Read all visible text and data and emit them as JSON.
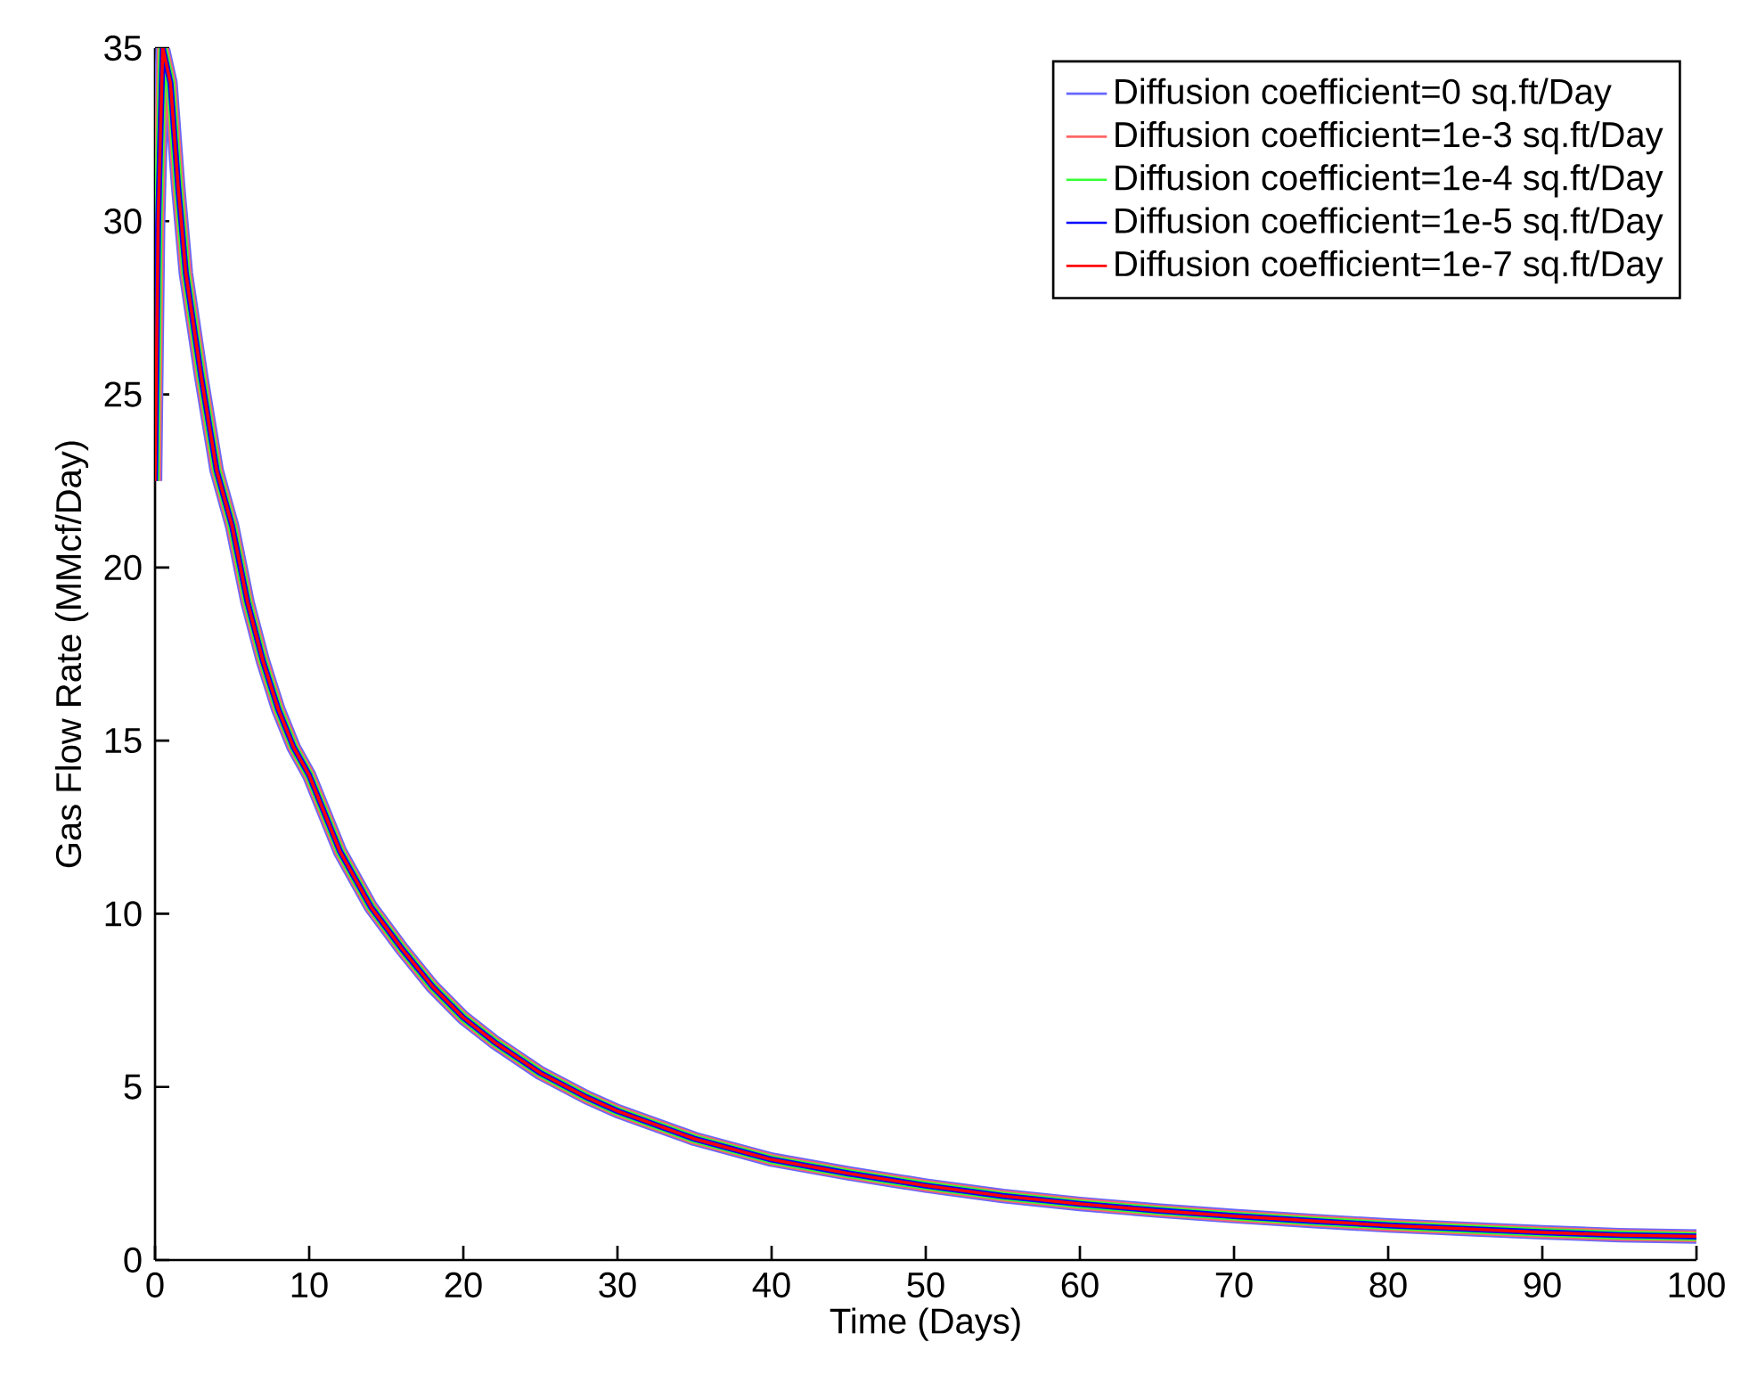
{
  "chart_data": {
    "type": "line",
    "xlabel": "Time (Days)",
    "ylabel": "Gas Flow Rate (MMcf/Day)",
    "x": [
      0,
      0.2,
      0.5,
      1,
      1.5,
      2,
      3,
      4,
      5,
      6,
      7,
      8,
      9,
      10,
      12,
      14,
      16,
      18,
      20,
      22,
      25,
      28,
      30,
      35,
      40,
      45,
      50,
      55,
      60,
      65,
      70,
      75,
      80,
      85,
      90,
      95,
      100
    ],
    "series": [
      {
        "name": "Diffusion coefficient=0 sq.ft/Day",
        "color": "#6666ff",
        "values": [
          22.5,
          30,
          35,
          34,
          31,
          28.5,
          25.5,
          22.8,
          21.2,
          19,
          17.3,
          15.9,
          14.8,
          14.0,
          11.8,
          10.2,
          9.0,
          7.9,
          7.0,
          6.3,
          5.4,
          4.7,
          4.3,
          3.5,
          2.9,
          2.5,
          2.15,
          1.85,
          1.62,
          1.43,
          1.27,
          1.13,
          1.0,
          0.9,
          0.8,
          0.72,
          0.68
        ]
      },
      {
        "name": "Diffusion coefficient=1e-3 sq.ft/Day",
        "color": "#ff6666",
        "values": [
          22.5,
          30,
          35,
          34,
          31,
          28.5,
          25.5,
          22.8,
          21.2,
          19,
          17.3,
          15.9,
          14.8,
          14.0,
          11.8,
          10.2,
          9.0,
          7.9,
          7.0,
          6.3,
          5.4,
          4.7,
          4.3,
          3.5,
          2.9,
          2.5,
          2.15,
          1.85,
          1.62,
          1.43,
          1.27,
          1.13,
          1.0,
          0.9,
          0.8,
          0.72,
          0.68
        ]
      },
      {
        "name": "Diffusion coefficient=1e-4 sq.ft/Day",
        "color": "#33ff33",
        "values": [
          22.5,
          30,
          35,
          34,
          31,
          28.5,
          25.5,
          22.8,
          21.2,
          19,
          17.3,
          15.9,
          14.8,
          14.0,
          11.8,
          10.2,
          9.0,
          7.9,
          7.0,
          6.3,
          5.4,
          4.7,
          4.3,
          3.5,
          2.9,
          2.5,
          2.15,
          1.85,
          1.62,
          1.43,
          1.27,
          1.13,
          1.0,
          0.9,
          0.8,
          0.72,
          0.68
        ]
      },
      {
        "name": "Diffusion coefficient=1e-5 sq.ft/Day",
        "color": "#0000ff",
        "values": [
          22.5,
          30,
          35,
          34,
          31,
          28.5,
          25.5,
          22.8,
          21.2,
          19,
          17.3,
          15.9,
          14.8,
          14.0,
          11.8,
          10.2,
          9.0,
          7.9,
          7.0,
          6.3,
          5.4,
          4.7,
          4.3,
          3.5,
          2.9,
          2.5,
          2.15,
          1.85,
          1.62,
          1.43,
          1.27,
          1.13,
          1.0,
          0.9,
          0.8,
          0.72,
          0.68
        ]
      },
      {
        "name": "Diffusion coefficient=1e-7 sq.ft/Day",
        "color": "#ff0000",
        "values": [
          22.5,
          30,
          35,
          34,
          31,
          28.5,
          25.5,
          22.8,
          21.2,
          19,
          17.3,
          15.9,
          14.8,
          14.0,
          11.8,
          10.2,
          9.0,
          7.9,
          7.0,
          6.3,
          5.4,
          4.7,
          4.3,
          3.5,
          2.9,
          2.5,
          2.15,
          1.85,
          1.62,
          1.43,
          1.27,
          1.13,
          1.0,
          0.9,
          0.8,
          0.72,
          0.68
        ]
      }
    ],
    "xlim": [
      0,
      100
    ],
    "ylim": [
      0,
      35
    ],
    "xticks": [
      0,
      10,
      20,
      30,
      40,
      50,
      60,
      70,
      80,
      90,
      100
    ],
    "yticks": [
      0,
      5,
      10,
      15,
      20,
      25,
      30,
      35
    ],
    "legend": "top right",
    "grid": false,
    "marker": "none",
    "line_style": "solid"
  }
}
